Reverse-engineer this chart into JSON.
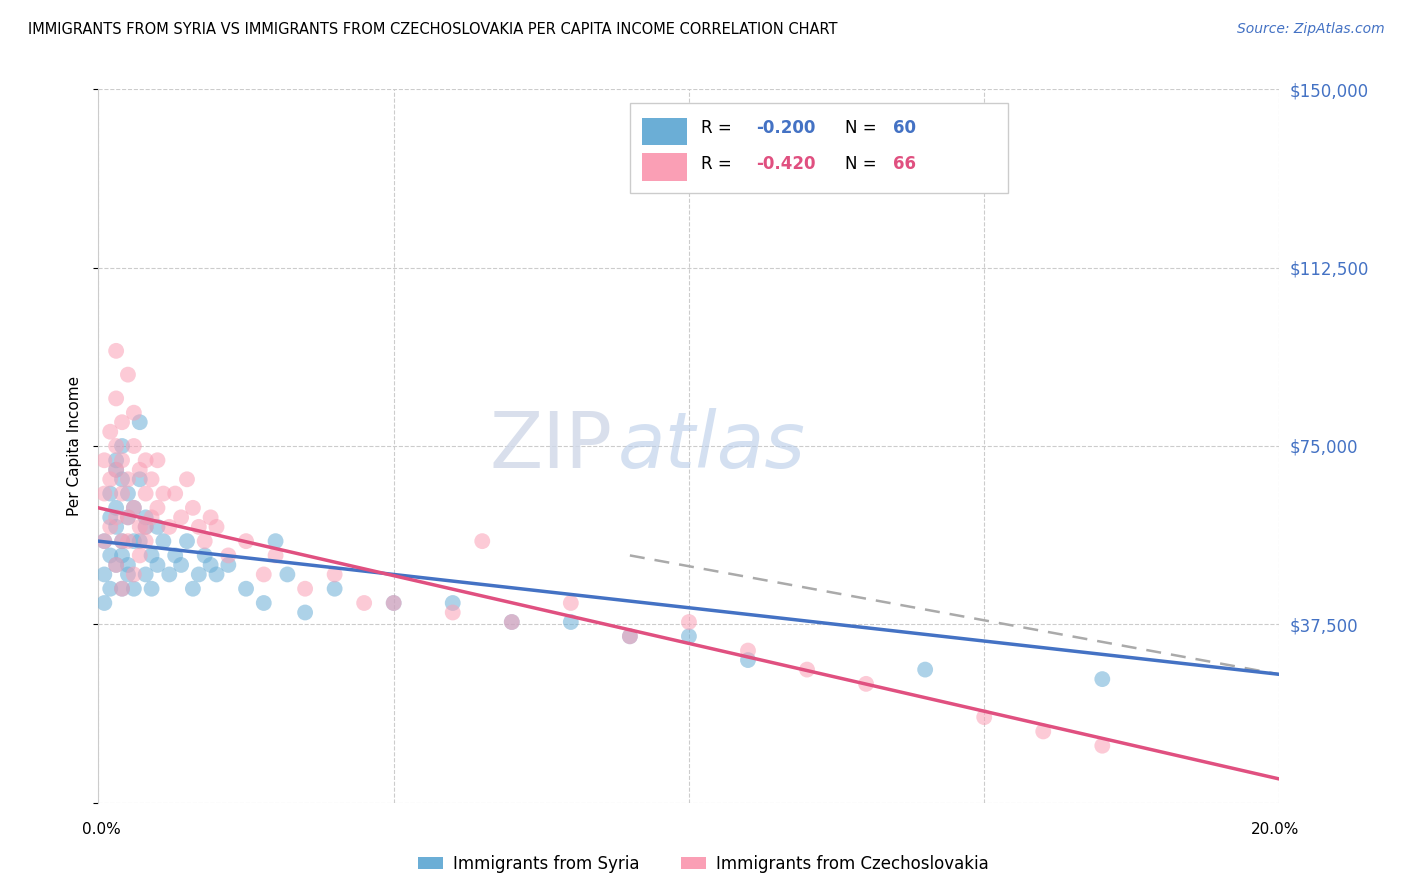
{
  "title": "IMMIGRANTS FROM SYRIA VS IMMIGRANTS FROM CZECHOSLOVAKIA PER CAPITA INCOME CORRELATION CHART",
  "source": "Source: ZipAtlas.com",
  "ylabel": "Per Capita Income",
  "yticks": [
    0,
    37500,
    75000,
    112500,
    150000
  ],
  "ytick_labels": [
    "",
    "$37,500",
    "$75,000",
    "$112,500",
    "$150,000"
  ],
  "xlim": [
    0.0,
    0.2
  ],
  "ylim": [
    0,
    150000
  ],
  "color_syria": "#6baed6",
  "color_czech": "#fa9fb5",
  "line_color_syria": "#4472C4",
  "line_color_czech": "#e05080",
  "line_color_dash": "#aaaaaa",
  "watermark_zip": "ZIP",
  "watermark_atlas": "atlas",
  "syria_R": -0.2,
  "syria_N": 60,
  "czech_R": -0.42,
  "czech_N": 66,
  "syria_line": [
    0.0,
    0.2,
    55000,
    27000
  ],
  "czech_line": [
    0.0,
    0.2,
    62000,
    5000
  ],
  "dash_line": [
    0.09,
    0.2,
    52000,
    27000
  ],
  "syria_scatter_x": [
    0.001,
    0.001,
    0.001,
    0.002,
    0.002,
    0.002,
    0.002,
    0.003,
    0.003,
    0.003,
    0.003,
    0.003,
    0.004,
    0.004,
    0.004,
    0.004,
    0.004,
    0.005,
    0.005,
    0.005,
    0.005,
    0.006,
    0.006,
    0.006,
    0.007,
    0.007,
    0.007,
    0.008,
    0.008,
    0.008,
    0.009,
    0.009,
    0.01,
    0.01,
    0.011,
    0.012,
    0.013,
    0.014,
    0.015,
    0.016,
    0.017,
    0.018,
    0.019,
    0.02,
    0.022,
    0.025,
    0.028,
    0.03,
    0.032,
    0.035,
    0.04,
    0.05,
    0.06,
    0.07,
    0.08,
    0.09,
    0.1,
    0.11,
    0.14,
    0.17
  ],
  "syria_scatter_y": [
    48000,
    55000,
    42000,
    60000,
    52000,
    65000,
    45000,
    70000,
    58000,
    72000,
    50000,
    62000,
    55000,
    68000,
    45000,
    75000,
    52000,
    60000,
    48000,
    65000,
    50000,
    55000,
    62000,
    45000,
    80000,
    68000,
    55000,
    58000,
    48000,
    60000,
    52000,
    45000,
    58000,
    50000,
    55000,
    48000,
    52000,
    50000,
    55000,
    45000,
    48000,
    52000,
    50000,
    48000,
    50000,
    45000,
    42000,
    55000,
    48000,
    40000,
    45000,
    42000,
    42000,
    38000,
    38000,
    35000,
    35000,
    30000,
    28000,
    26000
  ],
  "czech_scatter_x": [
    0.001,
    0.001,
    0.001,
    0.002,
    0.002,
    0.002,
    0.003,
    0.003,
    0.003,
    0.003,
    0.003,
    0.004,
    0.004,
    0.004,
    0.004,
    0.005,
    0.005,
    0.005,
    0.006,
    0.006,
    0.006,
    0.007,
    0.007,
    0.008,
    0.008,
    0.008,
    0.009,
    0.009,
    0.01,
    0.01,
    0.011,
    0.012,
    0.013,
    0.014,
    0.015,
    0.016,
    0.017,
    0.018,
    0.019,
    0.02,
    0.022,
    0.025,
    0.028,
    0.03,
    0.035,
    0.04,
    0.045,
    0.05,
    0.06,
    0.065,
    0.07,
    0.08,
    0.09,
    0.1,
    0.11,
    0.12,
    0.13,
    0.15,
    0.16,
    0.17,
    0.003,
    0.004,
    0.005,
    0.006,
    0.007,
    0.008
  ],
  "czech_scatter_y": [
    65000,
    55000,
    72000,
    68000,
    78000,
    58000,
    95000,
    85000,
    70000,
    60000,
    75000,
    80000,
    65000,
    72000,
    55000,
    68000,
    90000,
    60000,
    75000,
    62000,
    82000,
    70000,
    58000,
    65000,
    72000,
    55000,
    68000,
    60000,
    72000,
    62000,
    65000,
    58000,
    65000,
    60000,
    68000,
    62000,
    58000,
    55000,
    60000,
    58000,
    52000,
    55000,
    48000,
    52000,
    45000,
    48000,
    42000,
    42000,
    40000,
    55000,
    38000,
    42000,
    35000,
    38000,
    32000,
    28000,
    25000,
    18000,
    15000,
    12000,
    50000,
    45000,
    55000,
    48000,
    52000,
    58000
  ]
}
